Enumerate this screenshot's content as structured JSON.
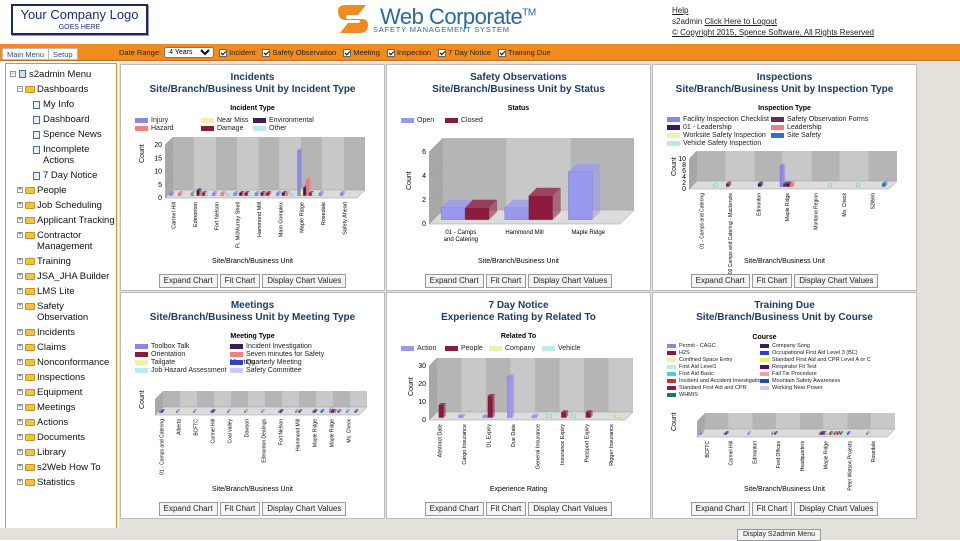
{
  "header": {
    "logo_line1": "Your Company Logo",
    "logo_line2": "GOES HERE",
    "brand_name": "Web Corporate",
    "brand_tm": "TM",
    "brand_sub": "SAFETY MANAGEMENT SYSTEM",
    "help": "Help",
    "user": "s2admin",
    "logout": "Click Here to Logout",
    "copyright": "© Copyright 2015, Spence Software, All Rights Reserved"
  },
  "tabs": {
    "main_menu": "Main Menu",
    "setup": "Setup"
  },
  "filters": {
    "date_range_label": "Date Range:",
    "date_range_value": "4 Years",
    "items": [
      "Incident",
      "Safety Observation",
      "Meeting",
      "Inspection",
      "7 Day Notice",
      "Training Due"
    ]
  },
  "tree": {
    "root": "s2admin Menu",
    "dashboards": "Dashboards",
    "dash_items": [
      "My Info",
      "Dashboard",
      "Spence News",
      "Incomplete Actions",
      "7 Day Notice"
    ],
    "folders": [
      "People",
      "Job Scheduling",
      "Applicant Tracking",
      "Contractor Management",
      "Training",
      "JSA_JHA Builder",
      "LMS Lite",
      "Safety Observation",
      "Incidents",
      "Claims",
      "Nonconformance",
      "Inspections",
      "Equipment",
      "Meetings",
      "Actions",
      "Documents",
      "Library",
      "s2Web How To",
      "Statistics"
    ]
  },
  "buttons": {
    "expand": "Expand Chart",
    "fit": "Fit Chart",
    "values": "Display Chart Values"
  },
  "footer_button": "Display S2admin Menu",
  "colors": {
    "orange": "#f08c1e",
    "title_blue": "#1a3b6e"
  },
  "chart_data": [
    {
      "type": "bar",
      "title": "Incidents",
      "subtitle": "Site/Branch/Business Unit by Incident Type",
      "legend_title": "Incident Type",
      "xlabel": "Site/Branch/Business Unit",
      "ylabel": "Count",
      "ylim": [
        0,
        20
      ],
      "yticks": [
        0,
        5,
        10,
        15,
        20
      ],
      "categories": [
        "Carmel Hill",
        "Edmonton",
        "Fort Nelson",
        "Ft. McMurray Shell",
        "Hammond Mill",
        "Main Complex",
        "Maple Ridge",
        "Rosedale",
        "Safety Ahead"
      ],
      "series": [
        {
          "name": "Injury",
          "color": "#8a88e6",
          "values": [
            1,
            1,
            1,
            1,
            1,
            1,
            17,
            1,
            1
          ]
        },
        {
          "name": "Near Miss",
          "color": "#f0f0a6",
          "values": [
            0,
            1,
            0,
            0,
            0,
            0,
            2,
            0,
            0
          ]
        },
        {
          "name": "Environmental",
          "color": "#3a1d5a",
          "values": [
            0,
            2,
            0,
            1,
            1,
            1,
            3,
            0,
            0
          ]
        },
        {
          "name": "Hazard",
          "color": "#f08080",
          "values": [
            1,
            1,
            1,
            1,
            1,
            1,
            6,
            0,
            0
          ]
        },
        {
          "name": "Damage",
          "color": "#8b1a3c",
          "values": [
            0,
            1,
            0,
            1,
            1,
            0,
            1,
            0,
            0
          ]
        },
        {
          "name": "Other",
          "color": "#b8eaf0",
          "values": [
            0,
            1,
            1,
            1,
            0,
            1,
            1,
            0,
            0
          ]
        }
      ]
    },
    {
      "type": "bar",
      "title": "Safety Observations",
      "subtitle": "Site/Branch/Business Unit by Status",
      "legend_title": "Status",
      "xlabel": "Site/Branch/Business Unit",
      "ylabel": "Count",
      "ylim": [
        0,
        6
      ],
      "yticks": [
        0,
        2,
        4,
        6
      ],
      "categories": [
        "01 - Camps and Catering",
        "Hammond Mill",
        "Maple Ridge"
      ],
      "series": [
        {
          "name": "Open",
          "color": "#9a98ee",
          "values": [
            1,
            1,
            4
          ]
        },
        {
          "name": "Closed",
          "color": "#8b1a3c",
          "values": [
            1,
            2,
            0
          ]
        }
      ]
    },
    {
      "type": "bar",
      "title": "Inspections",
      "subtitle": "Site/Branch/Business Unit by Inspection Type",
      "legend_title": "Inspection Type",
      "xlabel": "Site/Branch/Business Unit",
      "ylabel": "Count",
      "ylim": [
        0,
        10
      ],
      "yticks": [
        0,
        2,
        4,
        6,
        8,
        10
      ],
      "categories": [
        "01 - Camps and Catering",
        "02 Camps and Catering - Mackenzie",
        "Edmonton",
        "Maple Ridge",
        "Montana Region",
        "Ms. Check",
        "S2Web"
      ],
      "series": [
        {
          "name": "Facility Inspection Checklist",
          "color": "#8a88e6",
          "values": [
            0,
            0,
            0,
            7,
            0,
            0,
            0
          ]
        },
        {
          "name": "Safety Observation Forms",
          "color": "#6b2b5a",
          "values": [
            0,
            1,
            0,
            1,
            0,
            0,
            0
          ]
        },
        {
          "name": "01 - Leadership",
          "color": "#3a1d5a",
          "values": [
            0,
            0,
            1,
            1,
            0,
            0,
            0
          ]
        },
        {
          "name": "Leadership",
          "color": "#f08080",
          "values": [
            0,
            0,
            0,
            1,
            0,
            0,
            0
          ]
        },
        {
          "name": "Worksite Safety Inspection",
          "color": "#f0f0a6",
          "values": [
            0,
            0,
            0,
            0,
            0,
            0,
            0
          ]
        },
        {
          "name": "Site Safety",
          "color": "#2f6fd0",
          "values": [
            0,
            0,
            0,
            0,
            0,
            0,
            1
          ]
        },
        {
          "name": "Vehicle Safety Inspection",
          "color": "#b8eaf0",
          "values": [
            1,
            0,
            0,
            0,
            1,
            1,
            0
          ]
        }
      ]
    },
    {
      "type": "bar",
      "title": "Meetings",
      "subtitle": "Site/Branch/Business Unit by Meeting Type",
      "legend_title": "Meeting Type",
      "xlabel": "Site/Branch/Business Unit",
      "ylabel": "Count",
      "ylim": [
        0,
        10
      ],
      "yticks": [],
      "categories": [
        "01 - Camps and Catering",
        "Alberta",
        "BCFTC",
        "Carmel Hill",
        "Coal valley",
        "Dawson",
        "Edmonton Dealings",
        "Fort Nelson",
        "Hammond Mill",
        "Maple Ridge",
        "Maple Ridge",
        "Ms. Check"
      ],
      "series": [
        {
          "name": "Toolbox Talk",
          "color": "#8a88e6",
          "values": [
            1,
            1,
            1,
            1,
            1,
            1,
            1,
            1,
            1,
            1,
            2,
            1
          ]
        },
        {
          "name": "Incident Investigation",
          "color": "#3a1d5a",
          "values": [
            1,
            0,
            0,
            1,
            0,
            0,
            0,
            1,
            0,
            1,
            1,
            0
          ]
        },
        {
          "name": "Orientation",
          "color": "#8b1a3c",
          "values": [
            0,
            0,
            0,
            0,
            0,
            0,
            0,
            0,
            1,
            0,
            1,
            0
          ]
        },
        {
          "name": "Seven minutes for Safety Meeting",
          "color": "#f08080",
          "values": [
            0,
            0,
            0,
            0,
            0,
            0,
            0,
            0,
            0,
            0,
            1,
            0
          ]
        },
        {
          "name": "Tailgate",
          "color": "#f0f0a6",
          "values": [
            0,
            0,
            0,
            0,
            0,
            0,
            0,
            0,
            0,
            0,
            0,
            0
          ]
        },
        {
          "name": "Quarterly Meeting",
          "color": "#2f3fd0",
          "values": [
            0,
            0,
            0,
            0,
            0,
            0,
            0,
            0,
            0,
            1,
            1,
            1
          ]
        },
        {
          "name": "Job Hazard Assessment",
          "color": "#b8eaf0",
          "values": [
            0,
            0,
            0,
            0,
            0,
            0,
            0,
            0,
            0,
            0,
            0,
            0
          ]
        },
        {
          "name": "Safety Committee",
          "color": "#c9c9f5",
          "values": [
            0,
            0,
            0,
            0,
            0,
            0,
            0,
            0,
            0,
            0,
            0,
            0
          ]
        }
      ]
    },
    {
      "type": "bar",
      "title": "7 Day Notice",
      "subtitle": "Experience Rating by Related To",
      "legend_title": "Related To",
      "xlabel": "Experience Rating",
      "ylabel": "Count",
      "ylim": [
        0,
        30
      ],
      "yticks": [
        0,
        10,
        20,
        30
      ],
      "categories": [
        "Abstract Date",
        "Cargo Insurance",
        "DL Expiry",
        "Due Date",
        "General Insurance",
        "Insurance Expiry",
        "Passport Expiry",
        "Rigger Insurance"
      ],
      "series": [
        {
          "name": "Action",
          "color": "#9a98ee",
          "values": [
            0,
            1,
            1,
            23,
            1,
            0,
            0,
            0
          ]
        },
        {
          "name": "People",
          "color": "#8b1a3c",
          "values": [
            7,
            0,
            12,
            0,
            0,
            3,
            3,
            0
          ]
        },
        {
          "name": "Company",
          "color": "#f0f0a6",
          "values": [
            0,
            0,
            0,
            0,
            0,
            0,
            0,
            1
          ]
        },
        {
          "name": "Vehicle",
          "color": "#b8eaf0",
          "values": [
            0,
            0,
            0,
            0,
            2,
            2,
            0,
            0
          ]
        }
      ]
    },
    {
      "type": "bar",
      "title": "Training Due",
      "subtitle": "Site/Branch/Business Unit by Course",
      "legend_title": "Course",
      "xlabel": "Site/Branch/Business Unit",
      "ylabel": "Count",
      "ylim": [
        0,
        10
      ],
      "yticks": [],
      "categories": [
        "BCFTC",
        "Carmel Hill",
        "Edmonton",
        "Ford Offices",
        "Headquarters",
        "Maple Ridge",
        "Peter Watson Projects",
        "Rosedale"
      ],
      "series": [
        {
          "name": "Permit - CAGC",
          "color": "#8a88e6",
          "values": [
            1,
            1,
            1,
            1,
            0,
            1,
            0,
            1
          ]
        },
        {
          "name": "Company Song",
          "color": "#3a1d5a",
          "values": [
            0,
            1,
            0,
            0,
            0,
            1,
            0,
            0
          ]
        },
        {
          "name": "H2S",
          "color": "#8b1a3c",
          "values": [
            0,
            0,
            0,
            1,
            0,
            1,
            0,
            0
          ]
        },
        {
          "name": "Occupational First Aid Level 3 (BC)",
          "color": "#2f3fd0",
          "values": [
            0,
            0,
            0,
            0,
            0,
            1,
            1,
            0
          ]
        },
        {
          "name": "Confined Space Entry",
          "color": "#f0f0a6",
          "values": [
            0,
            0,
            0,
            0,
            0,
            1,
            0,
            0
          ]
        },
        {
          "name": "Standard First Aid and CPR Level A or C",
          "color": "#f0f060",
          "values": [
            0,
            0,
            0,
            0,
            0,
            1,
            0,
            0
          ]
        },
        {
          "name": "First Aid Level1",
          "color": "#b8eaf0",
          "values": [
            0,
            0,
            0,
            0,
            0,
            0,
            0,
            0
          ]
        },
        {
          "name": "Respirator Fit Test",
          "color": "#5a0a6a",
          "values": [
            0,
            0,
            0,
            0,
            0,
            1,
            0,
            0
          ]
        },
        {
          "name": "First Aid Basic",
          "color": "#40d0f0",
          "values": [
            0,
            0,
            0,
            0,
            0,
            1,
            0,
            0
          ]
        },
        {
          "name": "Fall Tie Procedure",
          "color": "#f0a0a0",
          "values": [
            0,
            0,
            0,
            0,
            0,
            0,
            0,
            0
          ]
        },
        {
          "name": "Incident and Accident Investigation",
          "color": "#c93030",
          "values": [
            0,
            0,
            0,
            0,
            0,
            1,
            0,
            0
          ]
        },
        {
          "name": "Mountain Safety Awareness",
          "color": "#1a4fb0",
          "values": [
            0,
            0,
            0,
            0,
            0,
            0,
            0,
            0
          ]
        },
        {
          "name": "Standard First Aid and CPR",
          "color": "#8b1a3c",
          "values": [
            0,
            0,
            0,
            0,
            0,
            1,
            0,
            0
          ]
        },
        {
          "name": "Working Near Power",
          "color": "#c9c9f5",
          "values": [
            0,
            0,
            0,
            0,
            0,
            0,
            0,
            0
          ]
        },
        {
          "name": "WHMIS",
          "color": "#1a7a6a",
          "values": [
            0,
            0,
            0,
            0,
            0,
            1,
            0,
            0
          ]
        }
      ]
    }
  ]
}
